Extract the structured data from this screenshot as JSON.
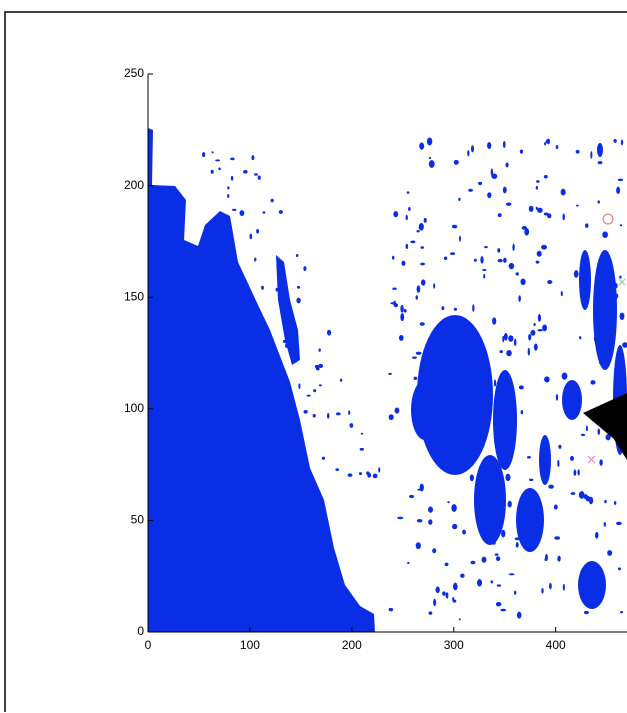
{
  "chart_data": {
    "type": "image",
    "xlim": [
      0,
      470
    ],
    "xticks": [
      0,
      100,
      200,
      300,
      400
    ],
    "ylim": [
      0,
      250
    ],
    "yticks": [
      0,
      50,
      100,
      150,
      200,
      250
    ]
  }
}
